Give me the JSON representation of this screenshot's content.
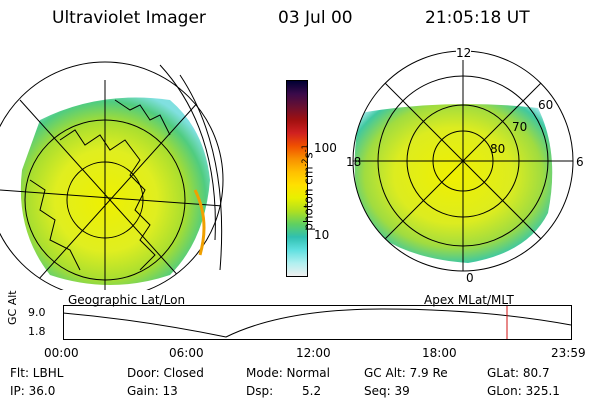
{
  "header": {
    "title": "Ultraviolet Imager",
    "date": "03 Jul 00",
    "time": "21:05:18 UT"
  },
  "colorbar": {
    "unit_label": "photon cm",
    "unit_sup1": "-2",
    "unit_mid": "s",
    "unit_sup2": "-1",
    "ticks": [
      "100",
      "10"
    ],
    "colors": [
      "#000033",
      "#3a0a4a",
      "#6a1030",
      "#a01010",
      "#d02020",
      "#f05000",
      "#f89000",
      "#ffc000",
      "#ffe000",
      "#e8f000",
      "#b0e020",
      "#60d060",
      "#30c0b0",
      "#60e0e0",
      "#b0f0f0",
      "#f0f0f0"
    ]
  },
  "maps": {
    "left_caption": "Geographic Lat/Lon",
    "right_caption": "Apex MLat/MLT",
    "mlt_labels": [
      "12",
      "18",
      "6",
      "0"
    ],
    "mlat_labels": [
      "60",
      "70",
      "80"
    ]
  },
  "altitude_plot": {
    "ylabel": "GC Alt",
    "yticks": [
      "9.0",
      "1.8"
    ],
    "xticks": [
      "00:00",
      "06:00",
      "12:00",
      "18:00",
      "23:59"
    ],
    "marker_color": "#d01010"
  },
  "info": {
    "row1": {
      "flt": "Flt: LBHL",
      "door": "Door: Closed",
      "mode": "Mode: Normal",
      "gcalt": "GC Alt: 7.9 Re",
      "glat": "GLat: 80.7"
    },
    "row2": {
      "ip": "IP: 36.0",
      "gain": "Gain: 13",
      "dsp_label": "Dsp:",
      "dsp_value": "5.2",
      "seq": "Seq: 39",
      "glon": "GLon: 325.1"
    }
  }
}
